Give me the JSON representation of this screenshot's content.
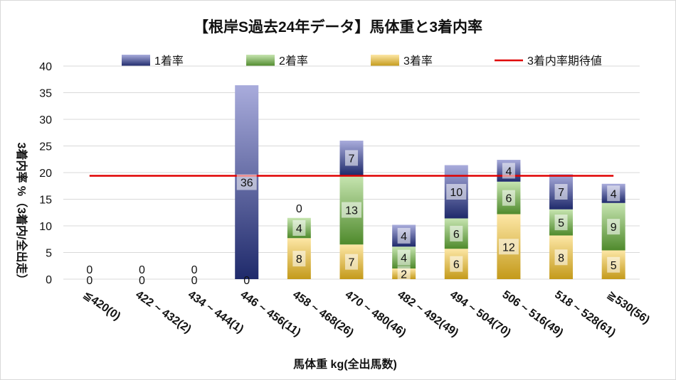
{
  "chart_data": {
    "type": "bar",
    "stacked": true,
    "title": "【根岸S過去24年データ】馬体重と3着内率",
    "xlabel": "馬体重 kg(全出馬数)",
    "ylabel": "3着内率 %（3着内/全出走）",
    "ylim": [
      0,
      40
    ],
    "yticks": [
      0,
      5,
      10,
      15,
      20,
      25,
      30,
      35,
      40
    ],
    "grid": true,
    "legend_position": "top",
    "categories": [
      "≦420(0)",
      "422 ~ 432(2)",
      "434 ~ 444(1)",
      "446 ~ 456(11)",
      "458 ~ 468(26)",
      "470 ~ 480(46)",
      "482 ~ 492(49)",
      "494 ~ 504(70)",
      "506 ~ 516(49)",
      "518 ~ 528(61)",
      "≧530(56)"
    ],
    "series": [
      {
        "name": "3着率",
        "color_dark": "#c49a1a",
        "color_light": "#fde7a6",
        "values": [
          0,
          0,
          0,
          0,
          7.7,
          6.5,
          2.0,
          5.7,
          12.2,
          8.2,
          5.4
        ],
        "labels": [
          "",
          "",
          "",
          "",
          "8",
          "7",
          "2",
          "6",
          "12",
          "8",
          "5"
        ]
      },
      {
        "name": "2着率",
        "color_dark": "#4f8a2c",
        "color_light": "#c7e5b1",
        "values": [
          0,
          0,
          0,
          0,
          3.8,
          13.0,
          4.1,
          5.7,
          6.1,
          4.9,
          8.9
        ],
        "labels": [
          "",
          "",
          "",
          "",
          "4",
          "13",
          "4",
          "6",
          "6",
          "5",
          "9"
        ]
      },
      {
        "name": "1着率",
        "color_dark": "#1f2a6b",
        "color_light": "#a9acdc",
        "values": [
          0,
          0,
          0,
          36.4,
          0,
          6.5,
          4.1,
          10.0,
          4.1,
          6.6,
          3.6
        ],
        "labels": [
          "0",
          "0",
          "0",
          "36",
          "0",
          "7",
          "4",
          "10",
          "4",
          "7",
          "4"
        ]
      }
    ],
    "reference_line": {
      "name": "3着内率期待値",
      "value": 19.4,
      "color": "#e00000"
    },
    "bottom_labels": [
      "0",
      "0",
      "0",
      "0"
    ]
  }
}
